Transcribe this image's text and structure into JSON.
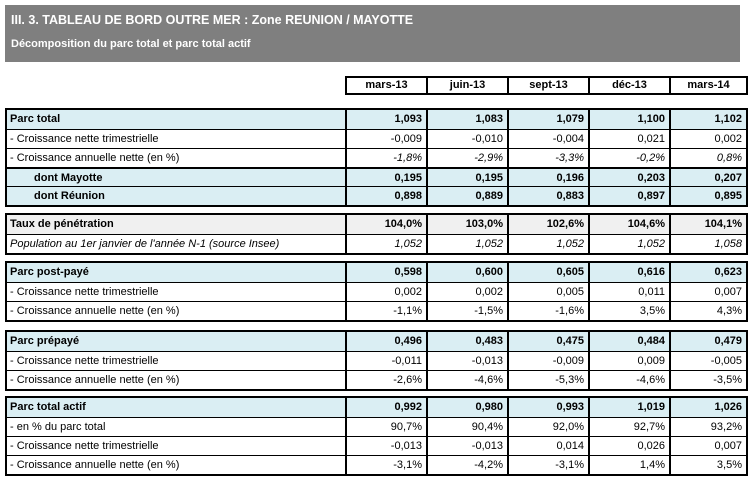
{
  "header": {
    "title": "III. 3. TABLEAU DE BORD OUTRE MER : Zone REUNION / MAYOTTE",
    "subtitle": "Décomposition du parc total et parc total actif"
  },
  "columns": [
    "mars-13",
    "juin-13",
    "sept-13",
    "déc-13",
    "mars-14"
  ],
  "colors": {
    "banner_bg": "#7F7F7F",
    "banner_text": "#FFFFFF",
    "section_row_bg": "#DAEEF3",
    "penetration_row_bg": "#F0F0F0",
    "border": "#000000"
  },
  "blocks": [
    {
      "rows": [
        {
          "label": "Parc total",
          "variant": "section",
          "values": [
            "1,093",
            "1,083",
            "1,079",
            "1,100",
            "1,102"
          ]
        },
        {
          "label": "- Croissance nette trimestrielle",
          "variant": "sub",
          "values": [
            "-0,009",
            "-0,010",
            "-0,004",
            "0,021",
            "0,002"
          ]
        },
        {
          "label": "- Croissance annuelle nette (en %)",
          "variant": "sub-italic-values",
          "values": [
            "-1,8%",
            "-2,9%",
            "-3,3%",
            "-0,2%",
            "0,8%"
          ]
        },
        {
          "label": "dont Mayotte",
          "variant": "dont",
          "thick_top": true,
          "values": [
            "0,195",
            "0,195",
            "0,196",
            "0,203",
            "0,207"
          ]
        },
        {
          "label": "dont Réunion",
          "variant": "dont",
          "values": [
            "0,898",
            "0,889",
            "0,883",
            "0,897",
            "0,895"
          ]
        }
      ]
    },
    {
      "rows": [
        {
          "label": "Taux de pénétration",
          "variant": "penetration",
          "values": [
            "104,0%",
            "103,0%",
            "102,6%",
            "104,6%",
            "104,1%"
          ]
        },
        {
          "label": "Population au 1er janvier de l'année N-1 (source Insee)",
          "variant": "population",
          "values": [
            "1,052",
            "1,052",
            "1,052",
            "1,052",
            "1,058"
          ]
        }
      ]
    },
    {
      "rows": [
        {
          "label": "Parc post-payé",
          "variant": "section",
          "values": [
            "0,598",
            "0,600",
            "0,605",
            "0,616",
            "0,623"
          ]
        },
        {
          "label": "- Croissance nette trimestrielle",
          "variant": "sub",
          "values": [
            "0,002",
            "0,002",
            "0,005",
            "0,011",
            "0,007"
          ]
        },
        {
          "label": "- Croissance annuelle nette (en %)",
          "variant": "sub",
          "values": [
            "-1,1%",
            "-1,5%",
            "-1,6%",
            "3,5%",
            "4,3%"
          ]
        }
      ]
    },
    {
      "rows": [
        {
          "label": "Parc prépayé",
          "variant": "section",
          "values": [
            "0,496",
            "0,483",
            "0,475",
            "0,484",
            "0,479"
          ]
        },
        {
          "label": "- Croissance nette trimestrielle",
          "variant": "sub",
          "values": [
            "-0,011",
            "-0,013",
            "-0,009",
            "0,009",
            "-0,005"
          ]
        },
        {
          "label": "- Croissance annuelle nette (en %)",
          "variant": "sub",
          "values": [
            "-2,6%",
            "-4,6%",
            "-5,3%",
            "-4,6%",
            "-3,5%"
          ]
        }
      ]
    },
    {
      "rows": [
        {
          "label": "Parc total actif",
          "variant": "section",
          "values": [
            "0,992",
            "0,980",
            "0,993",
            "1,019",
            "1,026"
          ]
        },
        {
          "label": "- en % du parc total",
          "variant": "sub",
          "values": [
            "90,7%",
            "90,4%",
            "92,0%",
            "92,7%",
            "93,2%"
          ]
        },
        {
          "label": "- Croissance nette trimestrielle",
          "variant": "sub",
          "values": [
            "-0,013",
            "-0,013",
            "0,014",
            "0,026",
            "0,007"
          ]
        },
        {
          "label": "- Croissance annuelle nette (en %)",
          "variant": "sub",
          "values": [
            "-3,1%",
            "-4,2%",
            "-3,1%",
            "1,4%",
            "3,5%"
          ]
        }
      ]
    }
  ]
}
